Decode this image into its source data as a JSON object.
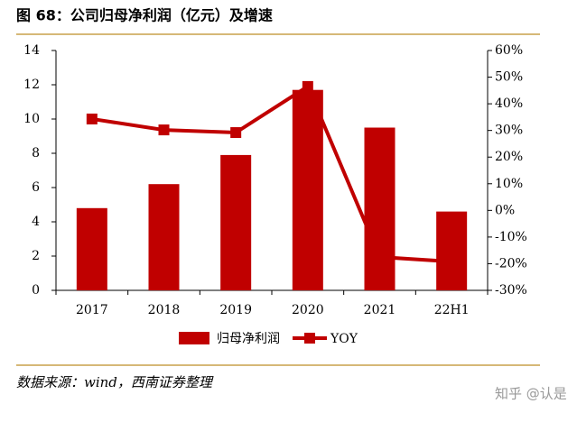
{
  "header": {
    "title": "图 68：公司归母净利润（亿元）及增速"
  },
  "chart_data": {
    "type": "bar-line",
    "categories": [
      "2017",
      "2018",
      "2019",
      "2020",
      "2021",
      "22H1"
    ],
    "series": [
      {
        "name": "归母净利润",
        "color": "#c00000",
        "type": "bar",
        "values": [
          4.8,
          6.2,
          7.9,
          11.7,
          9.5,
          4.6
        ]
      },
      {
        "name": "YOY",
        "color": "#c00000",
        "type": "line",
        "axis": "y2",
        "values": [
          34.3,
          30.2,
          29.2,
          46.5,
          -17.5,
          -19.2
        ]
      }
    ],
    "ylim": [
      0,
      14
    ],
    "yticks": [
      0,
      2,
      4,
      6,
      8,
      10,
      12,
      14
    ],
    "y2lim": [
      -30,
      60
    ],
    "y2ticks": [
      {
        "value": -30,
        "label": "-30%"
      },
      {
        "value": -20,
        "label": "-20%"
      },
      {
        "value": -10,
        "label": "-10%"
      },
      {
        "value": 0,
        "label": "0%"
      },
      {
        "value": 10,
        "label": "10%"
      },
      {
        "value": 20,
        "label": "20%"
      },
      {
        "value": 30,
        "label": "30%"
      },
      {
        "value": 40,
        "label": "40%"
      },
      {
        "value": 50,
        "label": "50%"
      },
      {
        "value": 60,
        "label": "60%"
      }
    ],
    "legend": "bottom"
  },
  "footer": {
    "source": "数据来源：wind，西南证券整理",
    "watermark": "知乎 @认是"
  }
}
